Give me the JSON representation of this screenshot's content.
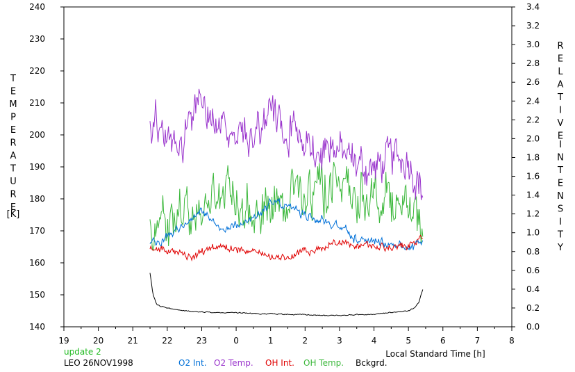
{
  "chart_data": {
    "type": "line",
    "x_axis": {
      "label": "Local Standard Time [h]",
      "ticks": [
        "19",
        "20",
        "21",
        "22",
        "23",
        "0",
        "1",
        "2",
        "3",
        "4",
        "5",
        "6",
        "7",
        "8"
      ],
      "range_hours_after_19": [
        0,
        13
      ]
    },
    "y_left": {
      "label_letters": [
        "T",
        "E",
        "M",
        "P",
        "E",
        "R",
        "A",
        "T",
        "U",
        "R",
        "E"
      ],
      "unit": "[K]",
      "range": [
        140,
        240
      ],
      "ticks": [
        140,
        150,
        160,
        170,
        180,
        190,
        200,
        210,
        220,
        230,
        240
      ]
    },
    "y_right": {
      "label_letters_1": [
        "R",
        "E",
        "L",
        "A",
        "T",
        "I",
        "V",
        "E"
      ],
      "label_letters_2": [
        "I",
        "N",
        "T",
        "E",
        "N",
        "S",
        "I",
        "T",
        "Y"
      ],
      "range": [
        0.0,
        3.4
      ],
      "ticks": [
        "0.0",
        "0.2",
        "0.4",
        "0.6",
        "0.8",
        "1.0",
        "1.2",
        "1.4",
        "1.6",
        "1.8",
        "2.0",
        "2.2",
        "2.4",
        "2.6",
        "2.8",
        "3.0",
        "3.2",
        "3.4"
      ]
    },
    "series": [
      {
        "name": "O2 Int.",
        "axis": "right",
        "color": "#0070d8",
        "noise": 0.035,
        "x": [
          "21:30",
          "22:00",
          "22:30",
          "23:00",
          "23:30",
          "0:00",
          "0:30",
          "1:00",
          "1:30",
          "2:00",
          "2:30",
          "3:00",
          "3:30",
          "4:00",
          "4:30",
          "5:00",
          "5:25"
        ],
        "values": [
          0.88,
          0.95,
          1.12,
          1.22,
          1.05,
          1.08,
          1.14,
          1.32,
          1.3,
          1.18,
          1.15,
          1.05,
          0.95,
          0.9,
          0.87,
          0.82,
          0.9
        ]
      },
      {
        "name": "O2 Temp.",
        "axis": "left",
        "color": "#9933cc",
        "noise": 4.5,
        "x": [
          "21:30",
          "22:00",
          "22:30",
          "23:00",
          "23:30",
          "0:00",
          "0:30",
          "1:00",
          "1:30",
          "2:00",
          "2:30",
          "3:00",
          "3:30",
          "4:00",
          "4:30",
          "5:00",
          "5:25"
        ],
        "values": [
          205,
          201,
          199,
          212,
          203,
          199,
          201,
          205,
          203,
          198,
          196,
          195,
          191,
          189,
          193,
          193,
          182
        ]
      },
      {
        "name": "OH Int.",
        "axis": "right",
        "color": "#e00000",
        "noise": 0.03,
        "x": [
          "21:30",
          "22:00",
          "22:30",
          "23:00",
          "23:30",
          "0:00",
          "0:30",
          "1:00",
          "1:30",
          "2:00",
          "2:30",
          "3:00",
          "3:30",
          "4:00",
          "4:30",
          "5:00",
          "5:25"
        ],
        "values": [
          0.85,
          0.82,
          0.75,
          0.78,
          0.87,
          0.82,
          0.8,
          0.74,
          0.75,
          0.8,
          0.84,
          0.9,
          0.88,
          0.85,
          0.86,
          0.88,
          0.95
        ]
      },
      {
        "name": "OH Temp.",
        "axis": "left",
        "color": "#3cb83c",
        "noise": 5.5,
        "x": [
          "21:30",
          "22:00",
          "22:30",
          "23:00",
          "23:30",
          "0:00",
          "0:30",
          "1:00",
          "1:30",
          "2:00",
          "2:30",
          "3:00",
          "3:30",
          "4:00",
          "4:30",
          "5:00",
          "5:25"
        ],
        "values": [
          170,
          172,
          176,
          178,
          181,
          178,
          176,
          178,
          182,
          182,
          184,
          185,
          182,
          182,
          180,
          176,
          170
        ]
      },
      {
        "name": "Bckgrd.",
        "axis": "right",
        "color": "#000000",
        "noise": 0.004,
        "x": [
          "21:30",
          "21:35",
          "21:42",
          "22:00",
          "22:30",
          "23:00",
          "23:30",
          "0:00",
          "0:30",
          "1:00",
          "1:30",
          "2:00",
          "2:30",
          "3:00",
          "3:30",
          "4:00",
          "4:30",
          "5:00",
          "5:10",
          "5:18",
          "5:25"
        ],
        "values": [
          0.57,
          0.35,
          0.23,
          0.2,
          0.17,
          0.16,
          0.15,
          0.15,
          0.14,
          0.14,
          0.13,
          0.13,
          0.12,
          0.12,
          0.13,
          0.13,
          0.15,
          0.17,
          0.2,
          0.26,
          0.4
        ]
      }
    ],
    "annotations": {
      "update": "update 2",
      "station": "LEO 26NOV1998"
    }
  },
  "legend": [
    {
      "label": "O2 Int.",
      "color": "#0070d8"
    },
    {
      "label": "O2 Temp.",
      "color": "#9933cc"
    },
    {
      "label": "OH Int.",
      "color": "#e00000"
    },
    {
      "label": "OH Temp.",
      "color": "#3cb83c"
    },
    {
      "label": "Bckgrd.",
      "color": "#000000"
    }
  ],
  "colors": {
    "update_text": "#22bb22",
    "axis": "#000000",
    "background": "#ffffff"
  }
}
